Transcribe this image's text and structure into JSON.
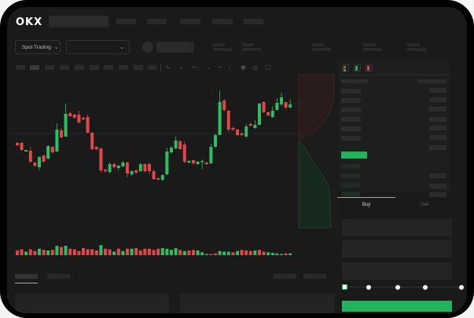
{
  "header": {
    "logo": "OKX",
    "nav_placeholders": 5
  },
  "toolbar": {
    "market_select": "Spot Trading",
    "pair_select": "",
    "chevron": "chevron-down-icon"
  },
  "chart_toolbar": {
    "icons": [
      "candle-interval",
      "indicator-icon",
      "line-tool-icon",
      "ruler-icon",
      "camera-icon",
      "settings-icon",
      "fullscreen-icon"
    ]
  },
  "orderbook": {
    "view_icons": [
      "both-sides-icon",
      "bids-only-icon",
      "asks-only-icon"
    ]
  },
  "trade": {
    "tabs": [
      {
        "label": "Buy",
        "active": true
      },
      {
        "label": "Sell",
        "active": false
      }
    ],
    "slider_percent": 0,
    "slider_stops": 5
  },
  "colors": {
    "up": "#2ebd62",
    "down": "#e04747",
    "background": "#1a1a1a",
    "accent": "#22b45c"
  },
  "chart_data": {
    "type": "candlestick",
    "candles": [
      [
        68,
        65,
        69,
        64
      ],
      [
        68,
        59,
        69,
        58
      ],
      [
        57,
        59,
        59,
        57
      ],
      [
        58,
        44,
        63,
        43
      ],
      [
        43,
        39,
        44,
        37
      ],
      [
        37,
        50,
        51,
        33
      ],
      [
        52,
        44,
        53,
        43
      ],
      [
        48,
        64,
        65,
        47
      ],
      [
        63,
        56,
        64,
        54
      ],
      [
        57,
        85,
        93,
        57
      ],
      [
        84,
        75,
        87,
        74
      ],
      [
        76,
        105,
        118,
        76
      ],
      [
        106,
        102,
        108,
        101
      ],
      [
        104,
        100,
        105,
        99
      ],
      [
        104,
        94,
        109,
        93
      ],
      [
        100,
        98,
        101,
        97
      ],
      [
        101,
        81,
        104,
        80
      ],
      [
        81,
        60,
        82,
        59
      ],
      [
        63,
        60,
        64,
        58
      ],
      [
        61,
        33,
        62,
        30
      ],
      [
        34,
        32,
        35,
        30
      ],
      [
        31,
        41,
        43,
        29
      ],
      [
        41,
        37,
        43,
        35
      ],
      [
        36,
        39,
        40,
        33
      ],
      [
        38,
        43,
        45,
        37
      ],
      [
        43,
        29,
        44,
        24
      ],
      [
        28,
        32,
        33,
        26
      ],
      [
        33,
        30,
        34,
        28
      ],
      [
        32,
        41,
        42,
        31
      ],
      [
        41,
        32,
        42,
        30
      ],
      [
        41,
        32,
        43,
        28
      ],
      [
        32,
        22,
        34,
        21
      ],
      [
        23,
        21,
        24,
        21
      ],
      [
        21,
        27,
        28,
        19
      ],
      [
        28,
        57,
        62,
        27
      ],
      [
        56,
        62,
        64,
        54
      ],
      [
        61,
        71,
        76,
        60
      ],
      [
        70,
        60,
        71,
        59
      ],
      [
        66,
        44,
        70,
        42
      ],
      [
        43,
        45,
        46,
        42
      ],
      [
        46,
        42,
        47,
        41
      ],
      [
        41,
        44,
        45,
        40
      ],
      [
        44,
        45,
        47,
        35
      ],
      [
        43,
        41,
        44,
        40
      ],
      [
        42,
        63,
        67,
        41
      ],
      [
        63,
        78,
        80,
        62
      ],
      [
        78,
        120,
        135,
        78
      ],
      [
        122,
        110,
        124,
        108
      ],
      [
        109,
        85,
        110,
        82
      ],
      [
        87,
        85,
        89,
        83
      ],
      [
        85,
        78,
        86,
        77
      ],
      [
        80,
        78,
        82,
        77
      ],
      [
        76,
        89,
        92,
        75
      ],
      [
        92,
        90,
        94,
        89
      ],
      [
        87,
        91,
        97,
        86
      ],
      [
        91,
        118,
        119,
        91
      ],
      [
        120,
        107,
        121,
        106
      ],
      [
        107,
        103,
        108,
        102
      ],
      [
        101,
        109,
        115,
        100
      ],
      [
        110,
        119,
        125,
        109
      ],
      [
        117,
        126,
        132,
        115
      ],
      [
        120,
        113,
        120,
        111
      ],
      [
        113,
        117,
        123,
        112
      ]
    ],
    "volume": [
      8,
      10,
      6,
      10,
      7,
      11,
      9,
      8,
      9,
      16,
      14,
      16,
      11,
      10,
      7,
      12,
      10,
      10,
      8,
      17,
      11,
      10,
      6,
      11,
      7,
      11,
      11,
      12,
      8,
      11,
      11,
      9,
      11,
      12,
      11,
      9,
      12,
      9,
      7,
      8,
      9,
      8,
      5,
      2,
      2,
      3,
      7,
      6,
      6,
      5,
      7,
      9,
      8,
      7,
      8,
      9,
      6,
      5,
      4,
      3,
      2,
      3,
      3
    ],
    "volume_up": [
      false,
      false,
      true,
      false,
      false,
      true,
      false,
      true,
      false,
      true,
      false,
      true,
      false,
      false,
      false,
      false,
      false,
      false,
      false,
      true,
      false,
      false,
      true,
      false,
      true,
      false,
      true,
      false,
      false,
      false,
      false,
      false,
      false,
      true,
      true,
      true,
      true,
      false,
      true,
      false,
      false,
      true,
      true,
      true,
      false,
      false,
      true,
      true,
      true,
      false,
      true,
      false,
      false,
      false,
      true,
      false,
      false,
      true,
      true,
      true,
      true,
      false,
      true
    ]
  }
}
